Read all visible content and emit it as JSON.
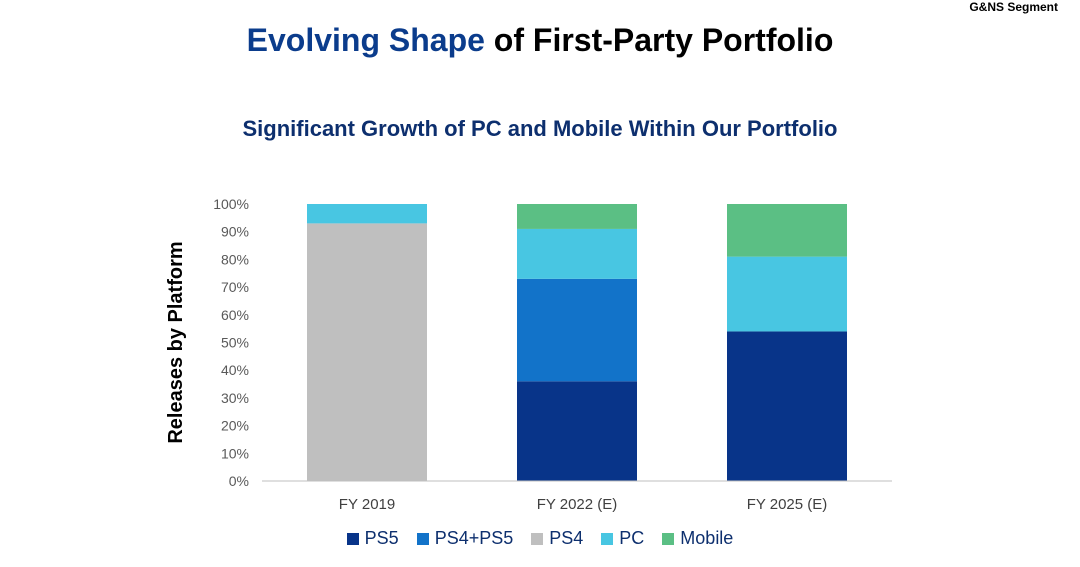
{
  "header": {
    "segment": "G&NS Segment",
    "title_accent": "Evolving Shape",
    "title_rest": " of First-Party Portfolio",
    "subtitle": "Significant Growth of PC and Mobile Within Our Portfolio"
  },
  "colors": {
    "PS5": "#083489",
    "PS4+PS5": "#1273c9",
    "PS4": "#bfbfbf",
    "PC": "#48c6e2",
    "Mobile": "#5bbf84"
  },
  "chart_data": {
    "type": "bar",
    "stacked": true,
    "ylabel": "Releases by Platform",
    "ylim": [
      0,
      100
    ],
    "yticks": [
      "0%",
      "10%",
      "20%",
      "30%",
      "40%",
      "50%",
      "60%",
      "70%",
      "80%",
      "90%",
      "100%"
    ],
    "categories": [
      "FY 2019",
      "FY 2022 (E)",
      "FY 2025 (E)"
    ],
    "series": [
      {
        "name": "PS5",
        "values": [
          0,
          36,
          54
        ]
      },
      {
        "name": "PS4+PS5",
        "values": [
          0,
          37,
          0
        ]
      },
      {
        "name": "PS4",
        "values": [
          93,
          0,
          0
        ]
      },
      {
        "name": "PC",
        "values": [
          7,
          18,
          27
        ]
      },
      {
        "name": "Mobile",
        "values": [
          0,
          9,
          19
        ]
      }
    ],
    "legend_position": "bottom"
  }
}
